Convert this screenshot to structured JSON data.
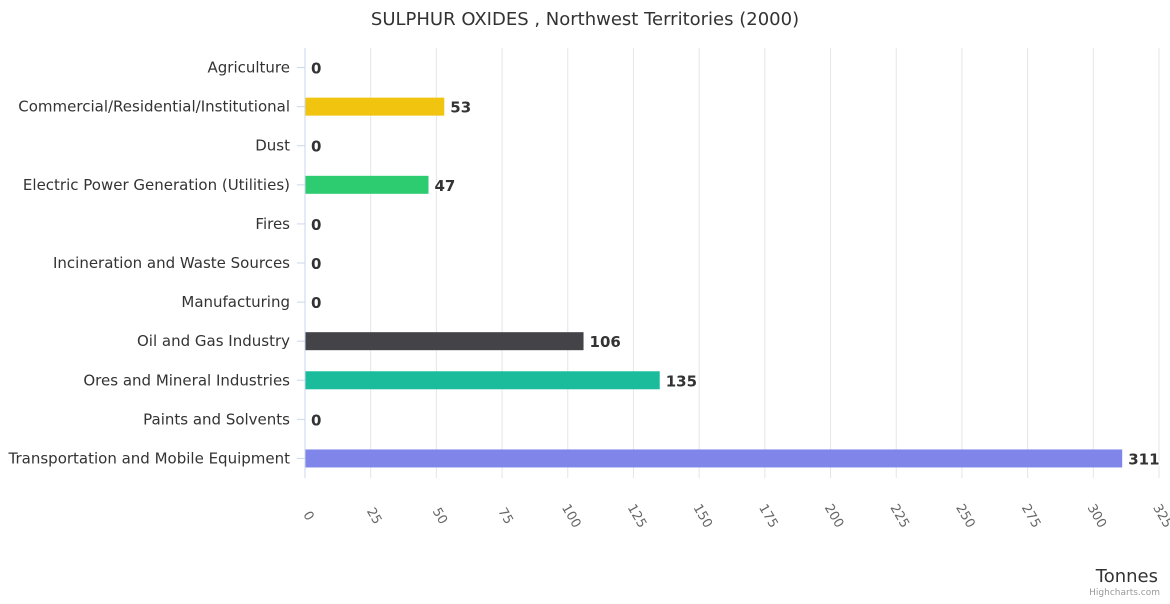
{
  "chart_data": {
    "type": "bar",
    "orientation": "horizontal",
    "title": "SULPHUR OXIDES , Northwest Territories (2000)",
    "xlabel": "Tonnes",
    "categories": [
      "Agriculture",
      "Commercial/Residential/Institutional",
      "Dust",
      "Electric Power Generation (Utilities)",
      "Fires",
      "Incineration and Waste Sources",
      "Manufacturing",
      "Oil and Gas Industry",
      "Ores and Mineral Industries",
      "Paints and Solvents",
      "Transportation and Mobile Equipment"
    ],
    "values": [
      0,
      53,
      0,
      47,
      0,
      0,
      0,
      106,
      135,
      0,
      311
    ],
    "bar_colors": [
      "#7cb5ec",
      "#f1c40f",
      "#2c3e50",
      "#2ecc71",
      "#e67e22",
      "#c0392b",
      "#9b59b6",
      "#434348",
      "#1abc9c",
      "#e74c3c",
      "#8085e9"
    ],
    "xlim": [
      0,
      325
    ],
    "ticks": [
      0,
      25,
      50,
      75,
      100,
      125,
      150,
      175,
      200,
      225,
      250,
      275,
      300,
      325
    ],
    "grid": true,
    "data_labels": true,
    "legend": "none"
  },
  "credits": "Highcharts.com"
}
